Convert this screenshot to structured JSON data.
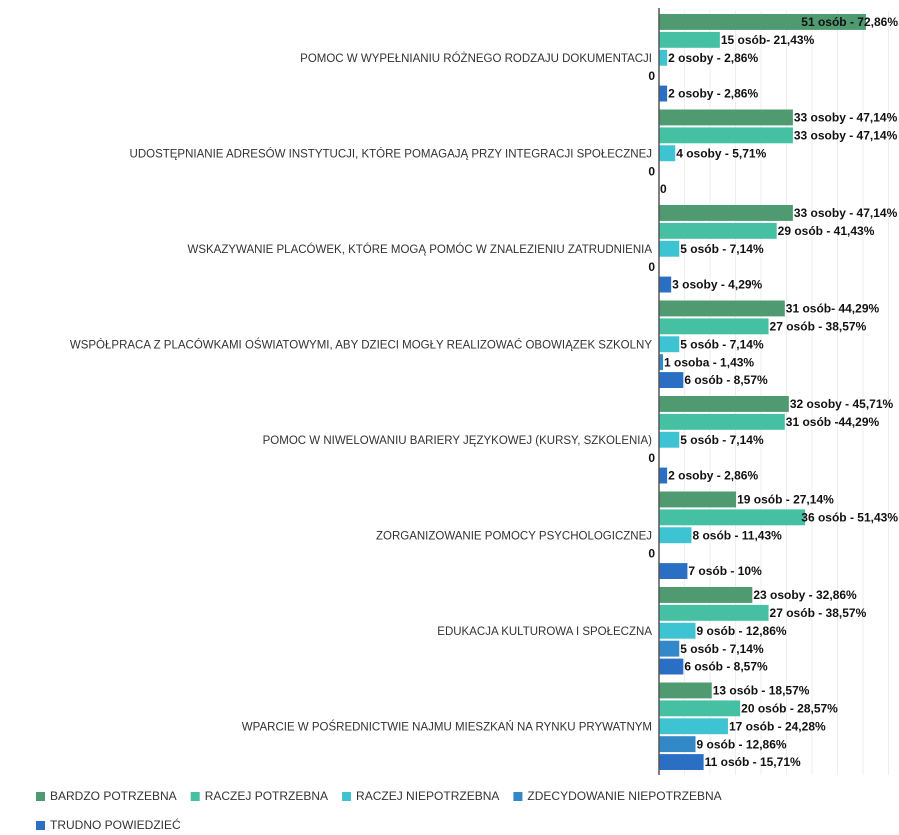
{
  "chart_data": {
    "type": "bar",
    "orientation": "horizontal",
    "categories": [
      "POMOC W WYPEŁNIANIU RÓŻNEGO RODZAJU DOKUMENTACJI",
      "UDOSTĘPNIANIE ADRESÓW INSTYTUCJI, KTÓRE POMAGAJĄ PRZY INTEGRACJI SPOŁECZNEJ",
      "WSKAZYWANIE PLACÓWEK, KTÓRE MOGĄ POMÓC W ZNALEZIENIU ZATRUDNIENIA",
      "WSPÓŁPRACA Z PLACÓWKAMI OŚWIATOWYMI, ABY DZIECI MOGŁY REALIZOWAĆ OBOWIĄZEK SZKOLNY",
      "POMOC W NIWELOWANIU BARIERY JĘZYKOWEJ (KURSY, SZKOLENIA)",
      "ZORGANIZOWANIE POMOCY PSYCHOLOGICZNEJ",
      "EDUKACJA KULTUROWA I SPOŁECZNA",
      "WPARCIE W POŚREDNICTWIE NAJMU MIESZKAŃ NA RYNKU PRYWATNYM"
    ],
    "series": [
      {
        "name": "BARDZO POTRZEBNA",
        "color": "#4f9a70",
        "values": [
          72.86,
          47.14,
          47.14,
          44.29,
          45.71,
          27.14,
          32.86,
          18.57
        ],
        "value_labels": [
          "51 osób - 72,86%",
          "33 osoby - 47,14%",
          "33 osoby - 47,14%",
          "31 osób- 44,29%",
          "32 osoby - 45,71%",
          "19 osób - 27,14%",
          "23 osoby - 32,86%",
          "13 osób - 18,57%"
        ]
      },
      {
        "name": "RACZEJ POTRZEBNA",
        "color": "#45c0a2",
        "values": [
          21.43,
          47.14,
          41.43,
          38.57,
          44.29,
          51.43,
          38.57,
          28.57
        ],
        "value_labels": [
          "15 osób- 21,43%",
          "33 osoby - 47,14%",
          "29 osób - 41,43%",
          "27 osób - 38,57%",
          "31 osób -44,29%",
          "36 osób - 51,43%",
          "27 osób - 38,57%",
          "20 osób - 28,57%"
        ]
      },
      {
        "name": "RACZEJ NIEPOTRZEBNA",
        "color": "#3ec3d3",
        "values": [
          2.86,
          5.71,
          7.14,
          7.14,
          7.14,
          11.43,
          12.86,
          24.28
        ],
        "value_labels": [
          "2 osoby - 2,86%",
          "4 osoby - 5,71%",
          "5 osób - 7,14%",
          "5 osób - 7,14%",
          "5 osób - 7,14%",
          "8 osób - 11,43%",
          "9 osób - 12,86%",
          "17 osób - 24,28%"
        ]
      },
      {
        "name": "ZDECYDOWANIE NIEPOTRZEBNA",
        "color": "#3389c8",
        "values": [
          0,
          0,
          0,
          1.43,
          0,
          0,
          7.14,
          12.86
        ],
        "value_labels": [
          "0",
          "0",
          "0",
          "1 osoba - 1,43%",
          "0",
          "0",
          "5 osób - 7,14%",
          "9 osób - 12,86%"
        ]
      },
      {
        "name": "TRUDNO POWIEDZIEĆ",
        "color": "#2b6fc4",
        "values": [
          2.86,
          0,
          4.29,
          8.57,
          2.86,
          10,
          8.57,
          15.71
        ],
        "value_labels": [
          "2 osoby - 2,86%",
          "0",
          "3 osoby - 4,29%",
          "6 osób - 8,57%",
          "2 osoby - 2,86%",
          "7 osób - 10%",
          "6 osób - 8,57%",
          "11 osób - 15,71%"
        ]
      }
    ],
    "xlim": [
      0,
      84.5
    ],
    "legend": "bottom"
  }
}
